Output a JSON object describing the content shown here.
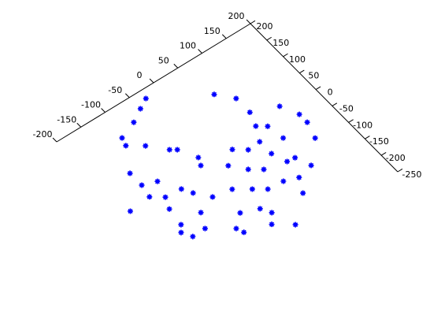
{
  "chart_data": {
    "type": "scatter",
    "color": "#0000ff",
    "xlim": [
      -200,
      200
    ],
    "xticks": [
      -200,
      -150,
      -100,
      -50,
      0,
      50,
      100,
      150,
      200
    ],
    "ylim": [
      -250,
      200
    ],
    "yticks": [
      -250,
      -200,
      -150,
      -100,
      -50,
      0,
      50,
      100,
      150,
      200
    ],
    "x": [
      63,
      86,
      -30,
      -50,
      -76,
      -111,
      -91,
      -65,
      -38,
      -146,
      -146,
      -121,
      -131,
      -100,
      -90,
      -194,
      -146,
      -146,
      -120,
      -105,
      -80,
      -55,
      -35,
      -10,
      16,
      36,
      11,
      -9,
      -24,
      -14,
      -29,
      11,
      31,
      61,
      76,
      61,
      91,
      132,
      96,
      71,
      41,
      147,
      147,
      86,
      66,
      51,
      1,
      137,
      97,
      -55,
      -141,
      -151,
      -70,
      86,
      -116,
      -45,
      -156,
      -75
    ],
    "y": [
      108,
      75,
      179,
      166,
      148,
      132,
      90,
      55,
      7,
      56,
      20,
      9,
      -30,
      -33,
      -54,
      -16,
      -100,
      -136,
      -135,
      -100,
      -171,
      -146,
      -92,
      -43,
      -17,
      -36,
      -73,
      -115,
      -161,
      -182,
      -204,
      -133,
      -91,
      -70,
      0,
      -34,
      -14,
      10,
      -54,
      -103,
      -136,
      -28,
      -52,
      -105,
      -147,
      -181,
      -232,
      -91,
      -138,
      46,
      -57,
      -11,
      -84,
      33,
      113,
      -11,
      -115,
      -187
    ]
  }
}
